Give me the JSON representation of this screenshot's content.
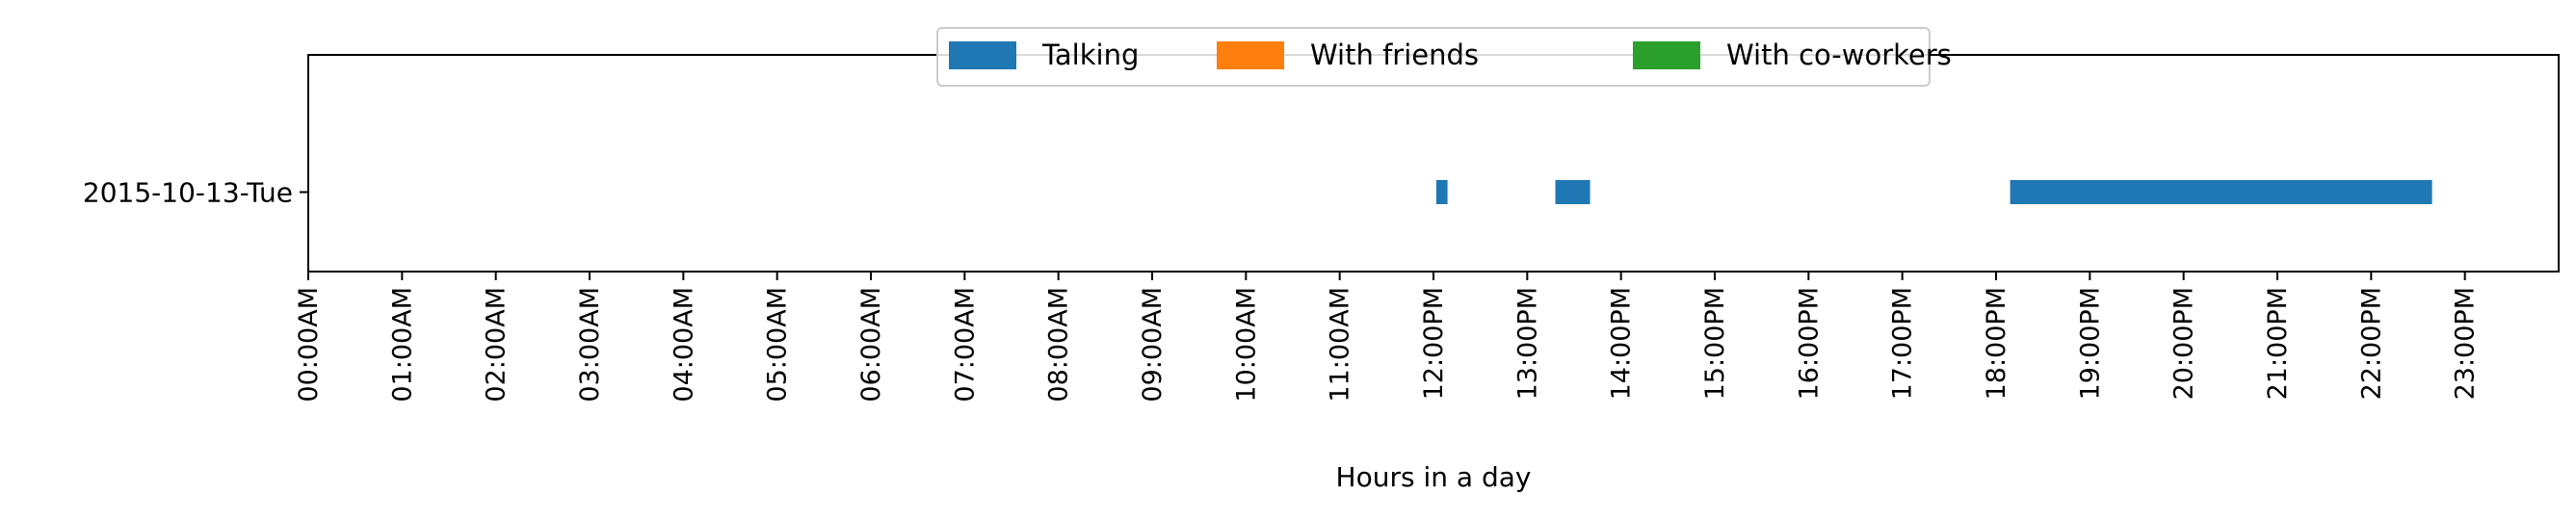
{
  "chart_data": {
    "type": "bar",
    "orientation": "horizontal",
    "title": "",
    "xlabel": "Hours in a day",
    "ylabel": "",
    "categories": [
      "2015-10-13-Tue"
    ],
    "xlim": [
      0,
      24
    ],
    "x_ticks": [
      {
        "value": 0,
        "label": "00:00AM"
      },
      {
        "value": 1,
        "label": "01:00AM"
      },
      {
        "value": 2,
        "label": "02:00AM"
      },
      {
        "value": 3,
        "label": "03:00AM"
      },
      {
        "value": 4,
        "label": "04:00AM"
      },
      {
        "value": 5,
        "label": "05:00AM"
      },
      {
        "value": 6,
        "label": "06:00AM"
      },
      {
        "value": 7,
        "label": "07:00AM"
      },
      {
        "value": 8,
        "label": "08:00AM"
      },
      {
        "value": 9,
        "label": "09:00AM"
      },
      {
        "value": 10,
        "label": "10:00AM"
      },
      {
        "value": 11,
        "label": "11:00AM"
      },
      {
        "value": 12,
        "label": "12:00PM"
      },
      {
        "value": 13,
        "label": "13:00PM"
      },
      {
        "value": 14,
        "label": "14:00PM"
      },
      {
        "value": 15,
        "label": "15:00PM"
      },
      {
        "value": 16,
        "label": "16:00PM"
      },
      {
        "value": 17,
        "label": "17:00PM"
      },
      {
        "value": 18,
        "label": "18:00PM"
      },
      {
        "value": 19,
        "label": "19:00PM"
      },
      {
        "value": 20,
        "label": "20:00PM"
      },
      {
        "value": 21,
        "label": "21:00PM"
      },
      {
        "value": 22,
        "label": "22:00PM"
      },
      {
        "value": 23,
        "label": "23:00PM"
      }
    ],
    "grid": false,
    "legend_position": "top-center",
    "series": [
      {
        "name": "Talking",
        "color": "#1f77b4",
        "intervals": [
          {
            "category": "2015-10-13-Tue",
            "start": 12.03,
            "end": 12.15
          },
          {
            "category": "2015-10-13-Tue",
            "start": 13.3,
            "end": 13.67
          },
          {
            "category": "2015-10-13-Tue",
            "start": 18.15,
            "end": 22.65
          }
        ]
      },
      {
        "name": "With friends",
        "color": "#ff7f0e",
        "intervals": []
      },
      {
        "name": "With co-workers",
        "color": "#2ca02c",
        "intervals": []
      }
    ]
  }
}
